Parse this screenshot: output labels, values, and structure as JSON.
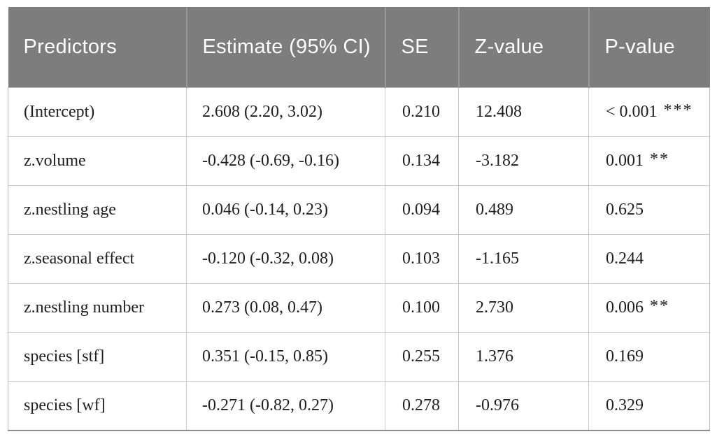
{
  "table": {
    "columns": [
      {
        "key": "predictor",
        "label": "Predictors"
      },
      {
        "key": "estimate",
        "label": "Estimate (95% CI)"
      },
      {
        "key": "se",
        "label": "SE"
      },
      {
        "key": "z",
        "label": "Z-value"
      },
      {
        "key": "p",
        "label": "P-value"
      }
    ],
    "rows": [
      {
        "predictor": "(Intercept)",
        "estimate": "2.608 (2.20, 3.02)",
        "se": "0.210",
        "z": "12.408",
        "p": "< 0.001",
        "stars": "***"
      },
      {
        "predictor": "z.volume",
        "estimate": "-0.428 (-0.69, -0.16)",
        "se": "0.134",
        "z": "-3.182",
        "p": "0.001",
        "stars": "**"
      },
      {
        "predictor": "z.nestling age",
        "estimate": "0.046 (-0.14, 0.23)",
        "se": "0.094",
        "z": "0.489",
        "p": "0.625",
        "stars": ""
      },
      {
        "predictor": "z.seasonal effect",
        "estimate": "-0.120 (-0.32, 0.08)",
        "se": "0.103",
        "z": "-1.165",
        "p": "0.244",
        "stars": ""
      },
      {
        "predictor": "z.nestling number",
        "estimate": "0.273 (0.08, 0.47)",
        "se": "0.100",
        "z": "2.730",
        "p": "0.006",
        "stars": "**"
      },
      {
        "predictor": "species [stf]",
        "estimate": "0.351 (-0.15, 0.85)",
        "se": "0.255",
        "z": "1.376",
        "p": "0.169",
        "stars": ""
      },
      {
        "predictor": "species [wf]",
        "estimate": "-0.271 (-0.82, 0.27)",
        "se": "0.278",
        "z": "-0.976",
        "p": "0.329",
        "stars": ""
      }
    ],
    "colors": {
      "header_bg": "#7d7d7d",
      "header_text": "#ffffff",
      "body_text": "#1f1f1f",
      "grid_line": "#c9c9c9",
      "header_divider": "#989898",
      "bottom_border": "#8c8c8c"
    }
  }
}
